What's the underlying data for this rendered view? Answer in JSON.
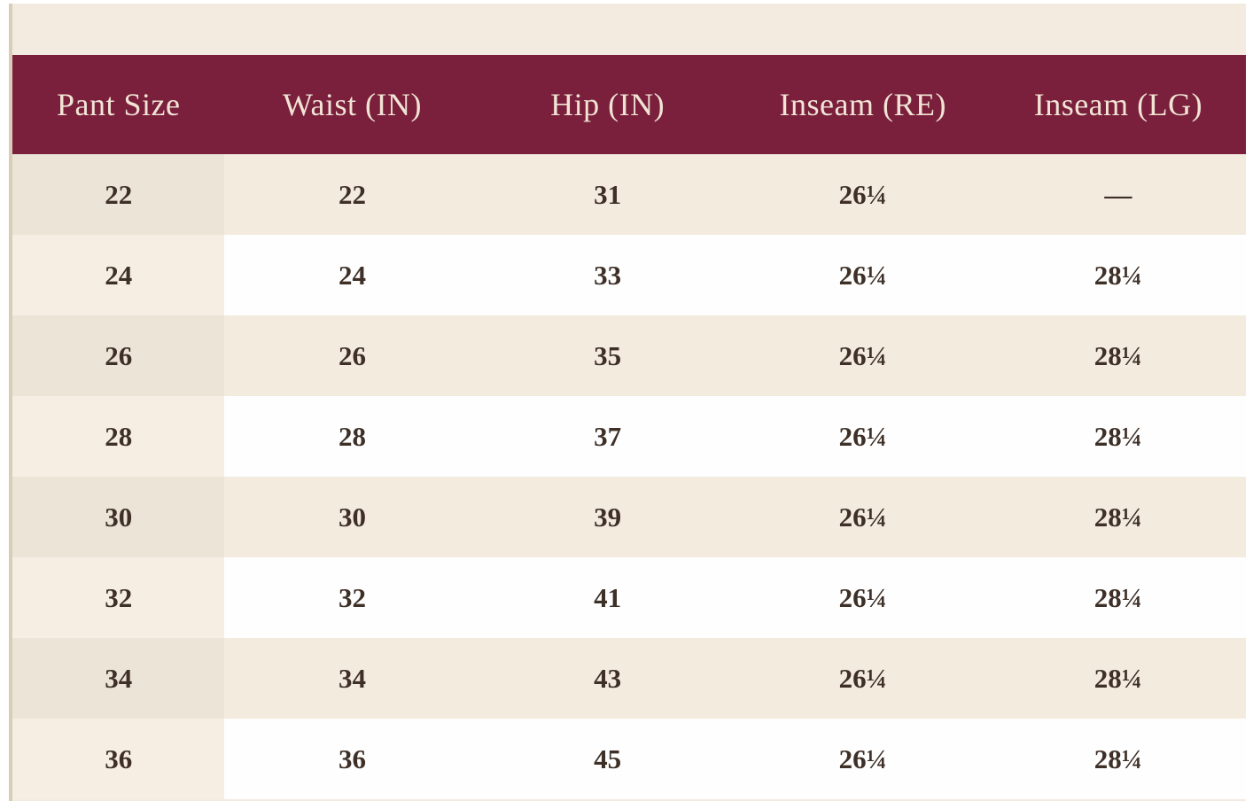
{
  "table": {
    "columns": [
      "Pant Size",
      "Waist (IN)",
      "Hip (IN)",
      "Inseam (RE)",
      "Inseam (LG)"
    ],
    "rows": [
      [
        "22",
        "22",
        "31",
        "26¼",
        "—"
      ],
      [
        "24",
        "24",
        "33",
        "26¼",
        "28¼"
      ],
      [
        "26",
        "26",
        "35",
        "26¼",
        "28¼"
      ],
      [
        "28",
        "28",
        "37",
        "26¼",
        "28¼"
      ],
      [
        "30",
        "30",
        "39",
        "26¼",
        "28¼"
      ],
      [
        "32",
        "32",
        "41",
        "26¼",
        "28¼"
      ],
      [
        "34",
        "34",
        "43",
        "26¼",
        "28¼"
      ],
      [
        "36",
        "36",
        "45",
        "26¼",
        "28¼"
      ]
    ]
  },
  "colors": {
    "header_background": "#7a1f3c",
    "header_text": "#f1e4d5",
    "page_background": "#f4ebe0",
    "row_beige": "#f4ebdf",
    "row_beige_first_col": "#ece4d6",
    "row_white": "#fefefe",
    "row_white_first_col": "#f6eee3",
    "cell_text": "#3e3027",
    "left_border": "#d9cdb7"
  }
}
